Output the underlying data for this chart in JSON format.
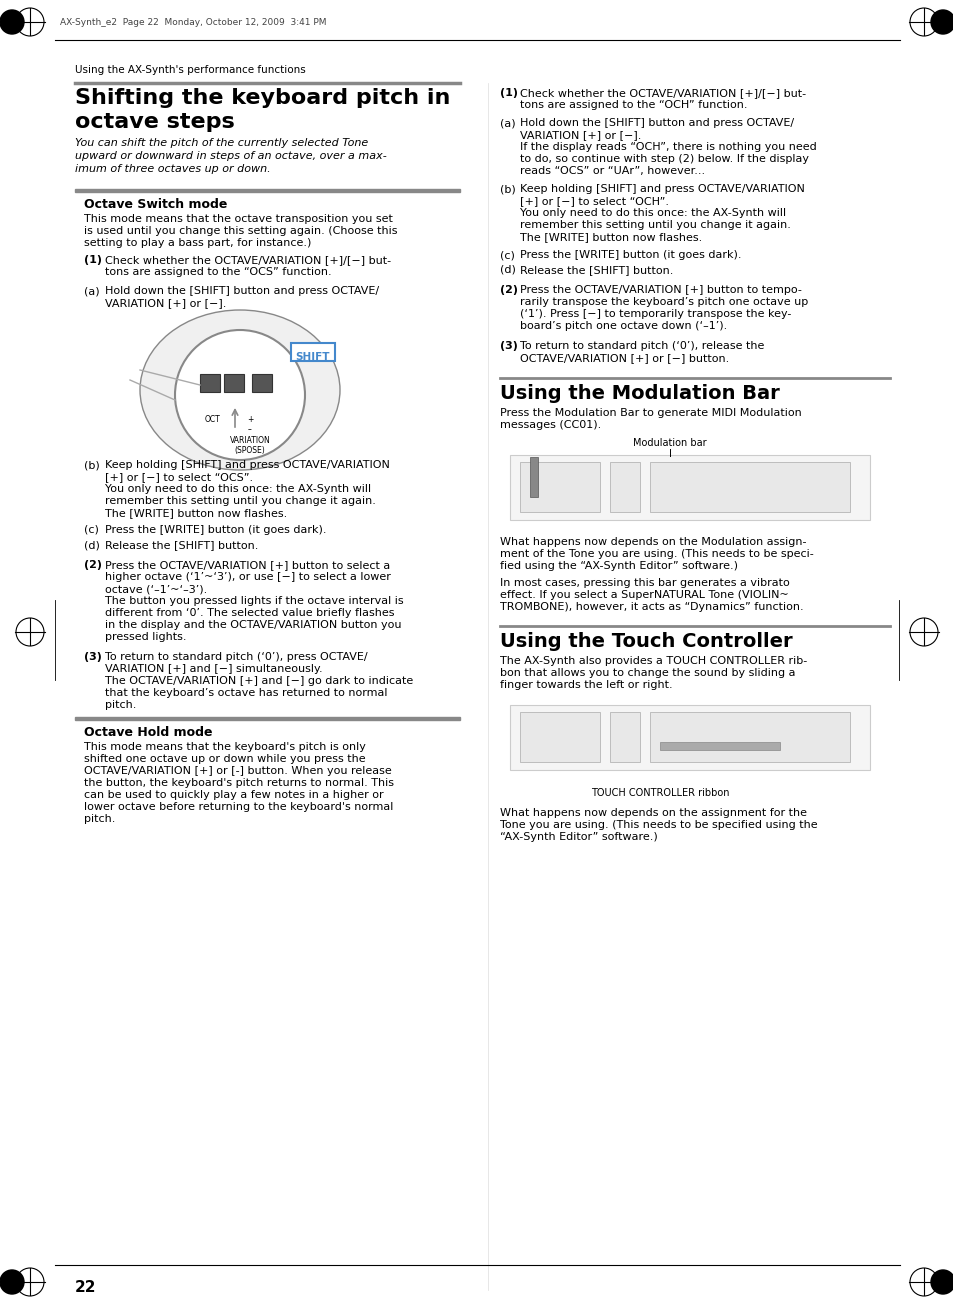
{
  "page_bg": "#ffffff",
  "text_color": "#000000",
  "header_text": "AX-Synth_e2  Page 22  Monday, October 12, 2009  3:41 PM",
  "breadcrumb": "Using the AX-Synth's performance functions",
  "page_number": "22",
  "title_main": "Shifting the keyboard pitch in octave steps",
  "subtitle_italic": "You can shift the pitch of the currently selected Tone\nupward or downward in steps of an octave, over a max-\nimum of three octaves up or down.",
  "section_octave_switch": "Octave Switch mode",
  "section_octave_switch_text": "This mode means that the octave transposition you set\nis used until you change this setting again. (Choose this\nsetting to play a bass part, for instance.)",
  "right_col_title": "Using the Modulation Bar",
  "right_col_subtitle": "Press the Modulation Bar to generate MIDI Modulation\nmessages (CC01).",
  "right_col_text1": "What happens now depends on the Modulation assign-\nment of the Tone you are using. (This needs to be speci-\nfied using the “AX-Synth Editor” software.)\nIn most cases, pressing this bar generates a vibrato\neffect. If you select a SuperNATURAL Tone (VIOLIN~\nTROMBONE), however, it acts as “Dynamics” function.",
  "right_col_title2": "Using the Touch Controller",
  "right_col_subtitle2": "The AX-Synth also provides a TOUCH CONTROLLER rib-\nbon that allows you to change the sound by sliding a\nfinger towards the left or right.",
  "right_col_text2": "What happens now depends on the assignment for the\nTone you are using. (This needs to be specified using the\n“AX-Synth Editor” software.)",
  "touch_controller_label": "TOUCH CONTROLLER ribbon",
  "modulation_label": "Modulation bar",
  "octave_hold_title": "Octave Hold mode",
  "octave_hold_text": "This mode means that the keyboard's pitch is only\nshifted one octave up or down while you press the\nOCTAVE/VARIATION [+] or [-] button. When you release\nthe button, the keyboard's pitch returns to normal. This\ncan be used to quickly play a few notes in a higher or\nlower octave before returning to the keyboard's normal\npitch.",
  "left_steps": [
    "(1)  Check whether the OCTAVE/VARIATION [+]/[-] but-\n     tons are assigned to the “OCS” function.",
    "(a)  Hold down the [SHIFT] button and press OCTAVE/\n     VARIATION [+] or [-].",
    "(b)  Keep holding [SHIFT] and press OCTAVE/VARIATION\n     [+] or [-] to select “OCS”.\n     You only need to do this once: the AX-Synth will\n     remember this setting until you change it again.\n     The [WRITE] button now flashes.",
    "(c)  Press the [WRITE] button (it goes dark).",
    "(d)  Release the [SHIFT] button.",
    "(2)  Press the OCTAVE/VARIATION [+] button to select a\n     higher octave (‘1’~‘3’), or use [-] to select a lower\n     octave (‘–1’~‘–3’).\n     The button you pressed lights if the octave interval is\n     different from ‘0’. The selected value briefly flashes\n     in the display and the OCTAVE/VARIATION button you\n     pressed lights.",
    "(3)  To return to standard pitch (‘0’), press OCTAVE/\n     VARIATION [+] and [-] simultaneously.\n     The OCTAVE/VARIATION [+] and [-] go dark to indicate\n     that the keyboard’s octave has returned to normal\n     pitch."
  ],
  "right_steps_1": [
    "(1)  Check whether the OCTAVE/VARIATION [+]/[-] but-\n     tons are assigned to the “OCH” function.",
    "(a)  Hold down the [SHIFT] button and press OCTAVE/\n     VARIATION [+] or [-].\n     If the display reads “OCH”, there is nothing you need\n     to do, so continue with step (2) below. If the display\n     reads “OCS” or “UAr”, however...",
    "(b)  Keep holding [SHIFT] and press OCTAVE/VARIATION\n     [+] or [-] to select “OCH”.\n     You only need to do this once: the AX-Synth will\n     remember this setting until you change it again.\n     The [WRITE] button now flashes.",
    "(c)  Press the [WRITE] button (it goes dark).",
    "(d)  Release the [SHIFT] button.",
    "(2)  Press the OCTAVE/VARIATION [+] button to tempo-\n     rarily transpose the keyboard’s pitch one octave up\n     (‘1’). Press [-] to temporarily transpose the key-\n     board’s pitch one octave down (‘–1’).",
    "(3)  To return to standard pitch (‘0’), release the\n     OCTAVE/VARIATION [+] or [-] button."
  ],
  "gray_bar_color": "#999999",
  "light_gray": "#cccccc",
  "section_bg": "#e8e8e8"
}
